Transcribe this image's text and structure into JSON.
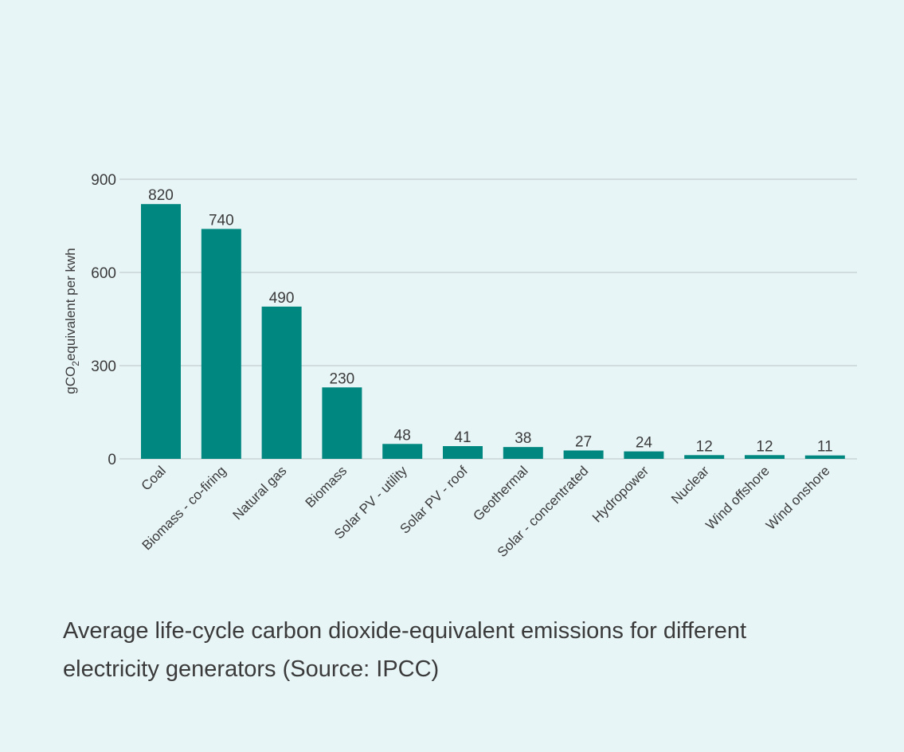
{
  "caption": "Average life-cycle carbon dioxide-equivalent emissions for different electricity generators (Source: IPCC)",
  "chart_data": {
    "type": "bar",
    "title": "",
    "ylabel": {
      "prefix": "gCO",
      "subscript": "2",
      "suffix": "equivalent per kwh"
    },
    "xlabel": "",
    "ylim": [
      0,
      900
    ],
    "yticks": [
      0,
      300,
      600,
      900
    ],
    "grid": true,
    "categories": [
      "Coal",
      "Biomass - co-firing",
      "Natural gas",
      "Biomass",
      "Solar PV - utility",
      "Solar PV - roof",
      "Geothermal",
      "Solar - concentrated",
      "Hydropower",
      "Nuclear",
      "Wind offshore",
      "Wind onshore"
    ],
    "values": [
      820,
      740,
      490,
      230,
      48,
      41,
      38,
      27,
      24,
      12,
      12,
      11
    ],
    "data_labels": true,
    "colors": {
      "bar": "#00877f",
      "grid": "#c9d4d6",
      "axis": "#c9d4d6",
      "text": "#3a3a3a",
      "background": "#e8f5f7"
    }
  }
}
